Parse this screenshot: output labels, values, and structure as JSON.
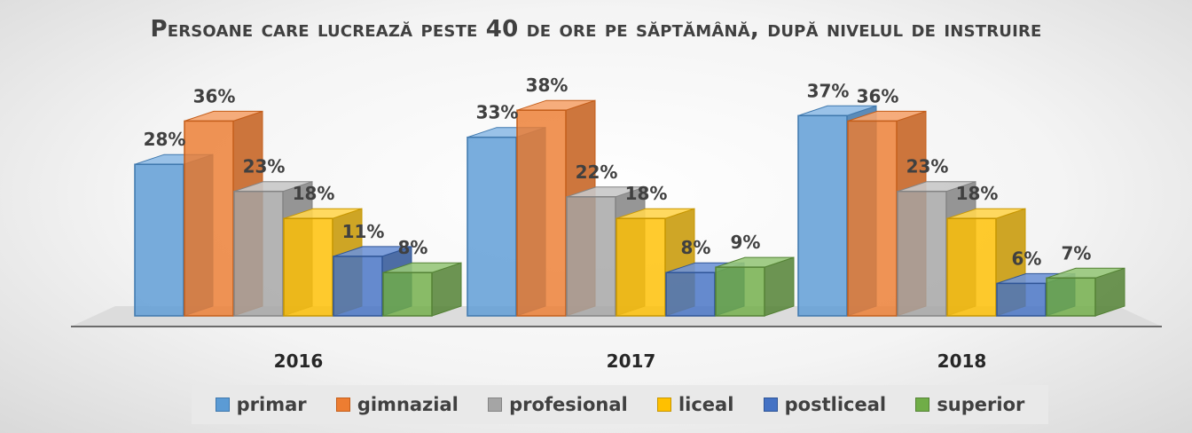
{
  "chart_data": {
    "type": "bar",
    "title": "Persoane care lucrează peste 40 de ore pe săptămână, după nivelul de instruire",
    "categories": [
      "2016",
      "2017",
      "2018"
    ],
    "series": [
      {
        "name": "primar",
        "values": [
          28,
          33,
          37
        ],
        "labels": [
          "28%",
          "33%",
          "37%"
        ],
        "color": "#5b9bd5",
        "side": "#3f78ad",
        "top": "#8fbbe6"
      },
      {
        "name": "gimnazial",
        "values": [
          36,
          38,
          36
        ],
        "labels": [
          "36%",
          "38%",
          "36%"
        ],
        "color": "#ed7d31",
        "side": "#c45e1b",
        "top": "#f5a46e"
      },
      {
        "name": "profesional",
        "values": [
          23,
          22,
          23
        ],
        "labels": [
          "23%",
          "22%",
          "23%"
        ],
        "color": "#a5a5a5",
        "side": "#848484",
        "top": "#c8c8c8"
      },
      {
        "name": "liceal",
        "values": [
          18,
          18,
          18
        ],
        "labels": [
          "18%",
          "18%",
          "18%"
        ],
        "color": "#ffc000",
        "side": "#c79600",
        "top": "#ffd54f"
      },
      {
        "name": "postliceal",
        "values": [
          11,
          8,
          6
        ],
        "labels": [
          "11%",
          "8%",
          "6%"
        ],
        "color": "#4472c4",
        "side": "#2f5597",
        "top": "#6f93d6"
      },
      {
        "name": "superior",
        "values": [
          8,
          9,
          7
        ],
        "labels": [
          "8%",
          "9%",
          "7%"
        ],
        "color": "#70ad47",
        "side": "#548235",
        "top": "#97c77a"
      }
    ],
    "ylim": [
      0,
      40
    ],
    "grid": false,
    "legend_position": "bottom",
    "style": "3d-column"
  }
}
